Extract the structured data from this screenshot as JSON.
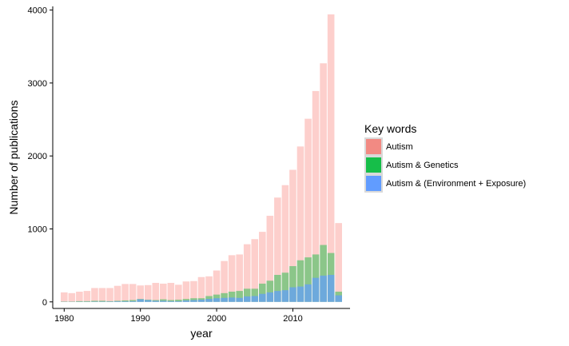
{
  "chart_data": {
    "type": "bar",
    "stacked_overlay": true,
    "xlabel": "year",
    "ylabel": "Number of publications",
    "xlim": [
      1978.5,
      2017.5
    ],
    "ylim": [
      -90,
      4050
    ],
    "xticks": [
      1980,
      1990,
      2000,
      2010
    ],
    "yticks": [
      0,
      1000,
      2000,
      3000,
      4000
    ],
    "grid": false,
    "legend_position": "right",
    "legend_title": "Key words",
    "x": [
      1980,
      1981,
      1982,
      1983,
      1984,
      1985,
      1986,
      1987,
      1988,
      1989,
      1990,
      1991,
      1992,
      1993,
      1994,
      1995,
      1996,
      1997,
      1998,
      1999,
      2000,
      2001,
      2002,
      2003,
      2004,
      2005,
      2006,
      2007,
      2008,
      2009,
      2010,
      2011,
      2012,
      2013,
      2014,
      2015,
      2016
    ],
    "series": [
      {
        "name": "Autism",
        "color": "#F8766D",
        "opacity": 0.35,
        "values": [
          130,
          120,
          140,
          150,
          190,
          190,
          190,
          220,
          245,
          245,
          225,
          230,
          260,
          250,
          260,
          235,
          280,
          285,
          340,
          350,
          430,
          560,
          640,
          650,
          790,
          860,
          960,
          1180,
          1430,
          1600,
          1810,
          2130,
          2510,
          2890,
          3270,
          3940,
          1080
        ]
      },
      {
        "name": "Autism & Genetics",
        "color": "#00BA38",
        "opacity": 0.45,
        "values": [
          5,
          5,
          10,
          10,
          15,
          15,
          10,
          15,
          20,
          25,
          40,
          30,
          25,
          35,
          25,
          30,
          40,
          50,
          50,
          80,
          100,
          120,
          140,
          150,
          180,
          180,
          250,
          290,
          370,
          400,
          490,
          570,
          610,
          650,
          780,
          670,
          140
        ]
      },
      {
        "name": "Autism & (Environment + Exposure)",
        "color": "#619CFF",
        "opacity": 0.7,
        "values": [
          2,
          2,
          3,
          3,
          5,
          5,
          5,
          8,
          8,
          10,
          35,
          25,
          15,
          15,
          10,
          10,
          20,
          25,
          30,
          40,
          50,
          55,
          60,
          55,
          75,
          80,
          110,
          130,
          150,
          160,
          200,
          210,
          240,
          330,
          360,
          370,
          90
        ]
      }
    ]
  }
}
